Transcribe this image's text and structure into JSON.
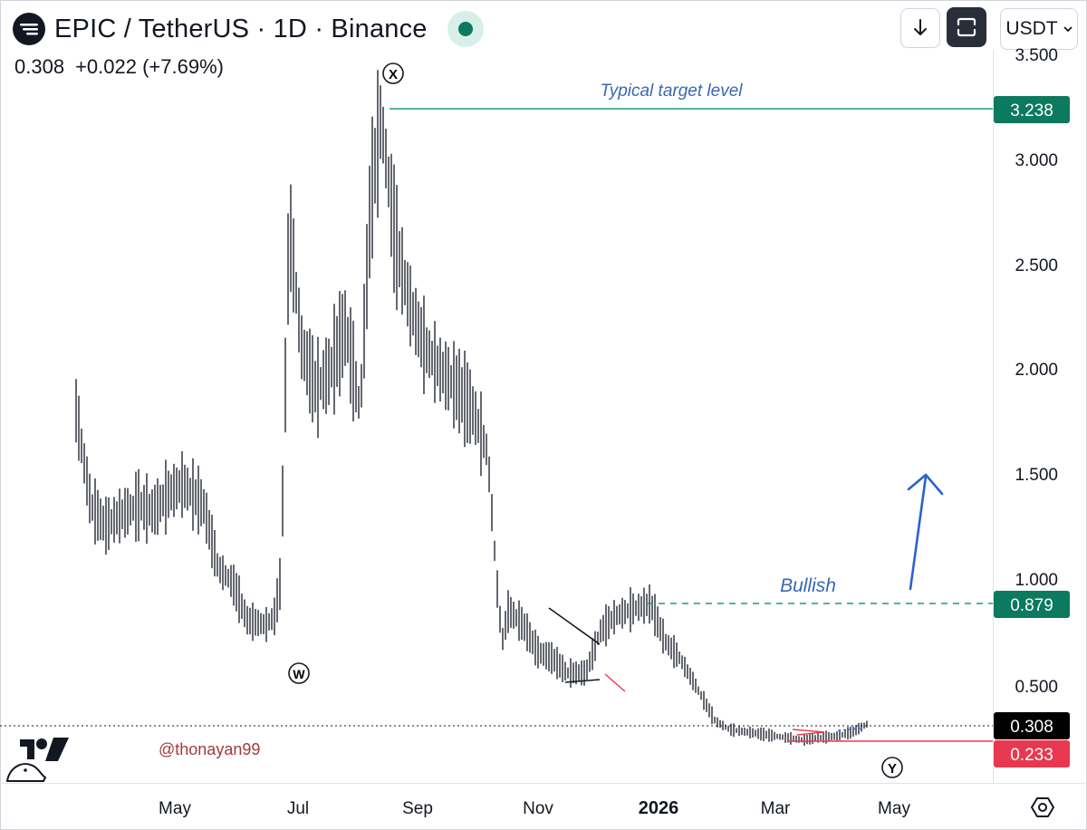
{
  "header": {
    "symbol": "EPIC / TetherUS · 1D · Binance",
    "last_price": "0.308",
    "change": "+0.022 (+7.69%)",
    "currency": "USDT",
    "status_color": "#0b7a5e"
  },
  "chart_data": {
    "type": "ohlc-bar",
    "y_axis_ticks": [
      "0.500",
      "1.000",
      "1.500",
      "2.000",
      "2.500",
      "3.000",
      "3.500"
    ],
    "x_axis_ticks": [
      "May",
      "Jul",
      "Sep",
      "Nov",
      "2026",
      "Mar",
      "May"
    ],
    "price_labels": [
      {
        "text": "3.238",
        "color": "#0b7a5e"
      },
      {
        "text": "0.879",
        "color": "#0b7a5e"
      },
      {
        "text": "0.308",
        "color": "#000000"
      },
      {
        "text": "0.233",
        "color": "#e8384f"
      }
    ],
    "annotations": {
      "target": "Typical target level",
      "bullish": "Bullish",
      "watermark": "@thonayan99",
      "wave_w": "W",
      "wave_x": "X",
      "wave_y": "Y"
    },
    "series": [
      {
        "x": [
          "2025-04-01",
          "2025-04-08",
          "2025-04-15",
          "2025-04-22",
          "2025-05-01",
          "2025-05-08",
          "2025-05-15",
          "2025-05-22",
          "2025-06-01",
          "2025-06-08",
          "2025-06-15",
          "2025-06-22",
          "2025-07-01",
          "2025-07-05",
          "2025-07-08",
          "2025-07-12",
          "2025-07-18",
          "2025-07-25",
          "2025-08-01",
          "2025-08-08",
          "2025-08-15",
          "2025-08-20",
          "2025-08-25",
          "2025-09-01",
          "2025-09-08",
          "2025-09-15",
          "2025-09-22",
          "2025-10-01",
          "2025-10-08",
          "2025-10-15",
          "2025-10-20",
          "2025-10-22",
          "2025-10-25",
          "2025-11-01",
          "2025-11-08",
          "2025-11-15",
          "2025-11-22",
          "2025-12-01",
          "2025-12-08",
          "2025-12-15",
          "2025-12-22",
          "2026-01-01",
          "2026-01-08",
          "2026-01-15",
          "2026-01-22",
          "2026-02-01",
          "2026-02-08",
          "2026-02-15",
          "2026-02-22",
          "2026-03-01",
          "2026-03-08",
          "2026-03-15",
          "2026-03-22",
          "2026-04-01",
          "2026-04-08",
          "2026-04-15"
        ],
        "values": [
          1.8,
          1.35,
          1.25,
          1.3,
          1.35,
          1.32,
          1.4,
          1.45,
          1.35,
          1.05,
          0.98,
          0.8,
          0.78,
          0.82,
          1.0,
          2.7,
          2.1,
          1.9,
          2.0,
          2.2,
          1.8,
          2.8,
          3.2,
          2.6,
          2.3,
          2.1,
          2.0,
          1.9,
          1.8,
          1.6,
          0.9,
          0.7,
          0.85,
          0.78,
          0.65,
          0.62,
          0.55,
          0.55,
          0.75,
          0.82,
          0.85,
          0.88,
          0.7,
          0.62,
          0.5,
          0.32,
          0.28,
          0.27,
          0.26,
          0.25,
          0.24,
          0.23,
          0.24,
          0.25,
          0.27,
          0.308
        ]
      }
    ]
  }
}
